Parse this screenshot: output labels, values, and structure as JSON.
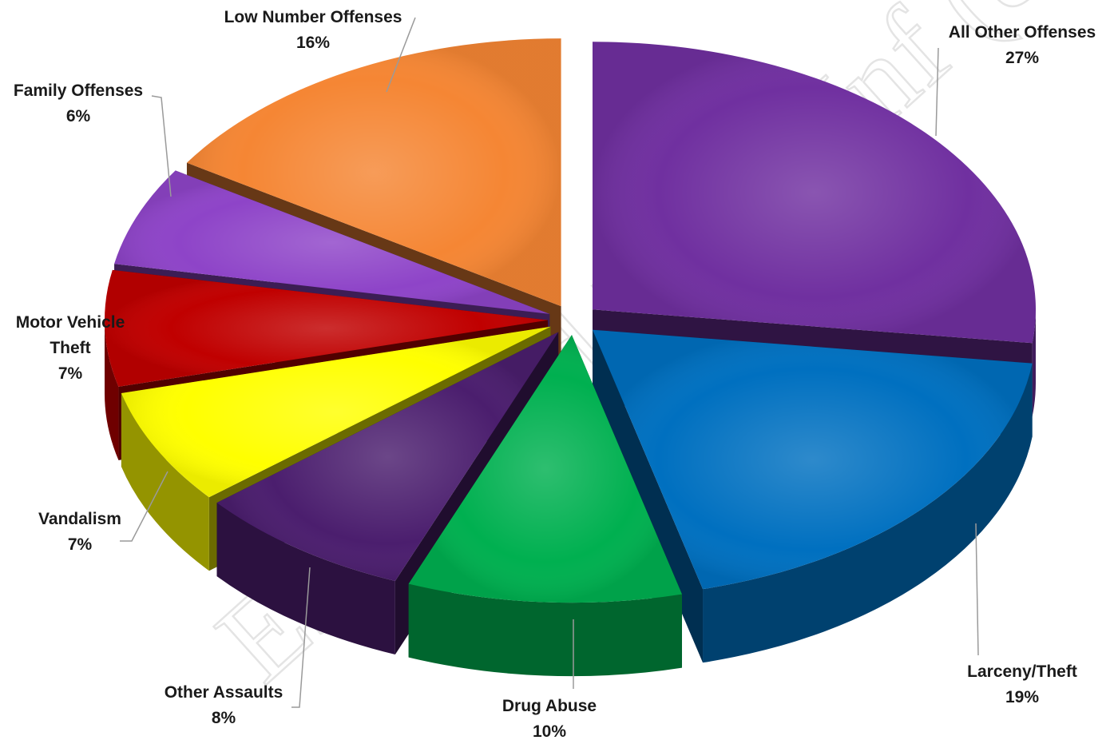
{
  "watermark": "Estimated Draft Inf (8)",
  "chart_data": {
    "type": "pie",
    "style": "3d-exploded",
    "title": "",
    "slices": [
      {
        "label_lines": [
          "All Other Offenses"
        ],
        "pct_label": "27%",
        "value": 27,
        "color": "#7030a0"
      },
      {
        "label_lines": [
          "Larceny/Theft"
        ],
        "pct_label": "19%",
        "value": 19,
        "color": "#0070c0"
      },
      {
        "label_lines": [
          "Drug Abuse"
        ],
        "pct_label": "10%",
        "value": 10,
        "color": "#00b050"
      },
      {
        "label_lines": [
          "Other Assaults"
        ],
        "pct_label": "8%",
        "value": 8,
        "color": "#4b1e6e"
      },
      {
        "label_lines": [
          "Vandalism"
        ],
        "pct_label": "7%",
        "value": 7,
        "color": "#ffff00"
      },
      {
        "label_lines": [
          "Motor Vehicle",
          "Theft"
        ],
        "pct_label": "7%",
        "value": 7,
        "color": "#c00000"
      },
      {
        "label_lines": [
          "Family Offenses"
        ],
        "pct_label": "6%",
        "value": 6,
        "color": "#8e44c8"
      },
      {
        "label_lines": [
          "Low Number Offenses"
        ],
        "pct_label": "16%",
        "value": 16,
        "color": "#f58634"
      }
    ]
  }
}
